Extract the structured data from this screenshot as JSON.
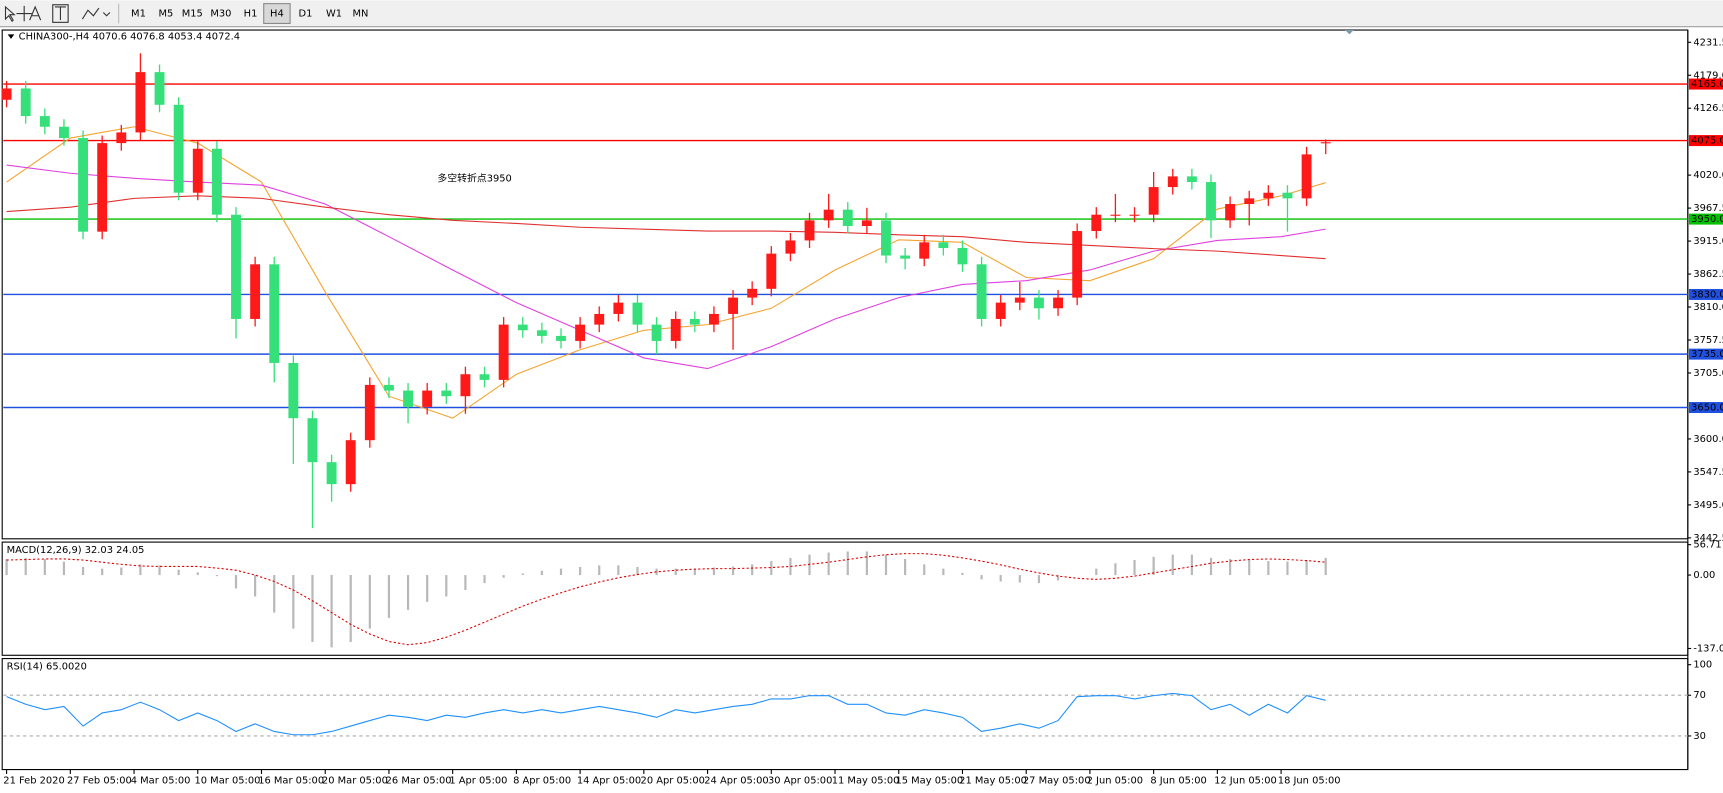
{
  "toolbar": {
    "timeframes": [
      "M1",
      "M5",
      "M15",
      "M30",
      "H1",
      "H4",
      "D1",
      "W1",
      "MN"
    ],
    "active": "H4"
  },
  "chart_data": [
    {
      "type": "candlestick",
      "title": "CHINA300-,H4 4070.6 4076.8 4053.4 4072.4",
      "annotation": "多空转折点3950",
      "x": [
        0,
        3,
        6,
        9,
        12,
        15,
        18,
        21,
        24,
        27,
        30,
        33,
        36,
        39,
        42,
        45,
        48,
        51,
        54,
        57,
        60,
        63,
        66,
        69,
        72,
        75,
        78,
        81,
        84,
        87,
        90,
        93,
        96,
        99,
        102,
        105,
        108,
        111,
        114,
        117,
        120,
        123,
        126,
        129,
        132,
        135,
        138,
        141,
        144,
        147,
        150,
        153,
        156,
        159,
        162,
        165,
        168,
        171,
        174,
        177,
        180,
        183,
        186,
        189,
        192,
        195,
        198,
        201,
        204,
        207
      ],
      "open": [
        4140,
        4158,
        4114,
        4097,
        4079,
        3930,
        4071,
        4088,
        4184,
        4132,
        3992,
        4062,
        3957,
        3791,
        3878,
        3721,
        3633,
        3563,
        3528,
        3598,
        3686,
        3677,
        3651,
        3677,
        3668,
        3703,
        3694,
        3782,
        3773,
        3764,
        3756,
        3782,
        3799,
        3817,
        3782,
        3756,
        3791,
        3782,
        3799,
        3825,
        3839,
        3895,
        3916,
        3948,
        3965,
        3939,
        3948,
        3892,
        3887,
        3913,
        3904,
        3878,
        3791,
        3817,
        3825,
        3808,
        3825,
        3931,
        3957,
        3957,
        3957,
        4001,
        4018,
        4009,
        3948,
        3974,
        3983,
        3992,
        3983,
        4070.6
      ],
      "high": [
        4170,
        4170,
        4126,
        4109,
        4091,
        4083,
        4100,
        4214,
        4196,
        4144,
        4074,
        4074,
        3969,
        3890,
        3890,
        3733,
        3645,
        3575,
        3610,
        3698,
        3698,
        3689,
        3689,
        3689,
        3715,
        3715,
        3794,
        3794,
        3785,
        3776,
        3794,
        3811,
        3829,
        3829,
        3794,
        3803,
        3803,
        3811,
        3837,
        3851,
        3907,
        3928,
        3960,
        3990,
        3977,
        3968,
        3960,
        3904,
        3925,
        3925,
        3916,
        3890,
        3829,
        3850,
        3837,
        3837,
        3943,
        3969,
        3990,
        3969,
        4025,
        4030,
        4030,
        4021,
        3986,
        3995,
        4004,
        4004,
        4065,
        4076.8
      ],
      "low": [
        4128,
        4102,
        4085,
        4067,
        3918,
        3918,
        4059,
        4076,
        4120,
        3980,
        3980,
        3945,
        3760,
        3779,
        3690,
        3560,
        3458,
        3500,
        3516,
        3586,
        3665,
        3625,
        3639,
        3656,
        3640,
        3682,
        3682,
        3761,
        3752,
        3744,
        3744,
        3770,
        3787,
        3770,
        3735,
        3744,
        3770,
        3770,
        3742,
        3813,
        3827,
        3883,
        3904,
        3936,
        3927,
        3927,
        3880,
        3870,
        3875,
        3892,
        3866,
        3779,
        3779,
        3805,
        3790,
        3796,
        3813,
        3919,
        3945,
        3945,
        3945,
        3989,
        3997,
        3920,
        3936,
        3940,
        3971,
        3930,
        3971,
        4053.4
      ],
      "close": [
        4158,
        4114,
        4097,
        4079,
        3930,
        4071,
        4088,
        4184,
        4132,
        3992,
        4062,
        3957,
        3791,
        3878,
        3721,
        3633,
        3563,
        3528,
        3598,
        3686,
        3677,
        3651,
        3677,
        3668,
        3703,
        3694,
        3782,
        3773,
        3764,
        3756,
        3782,
        3799,
        3817,
        3782,
        3756,
        3791,
        3782,
        3799,
        3825,
        3839,
        3895,
        3916,
        3948,
        3965,
        3939,
        3948,
        3892,
        3887,
        3913,
        3904,
        3878,
        3791,
        3817,
        3825,
        3808,
        3825,
        3931,
        3957,
        3957,
        3957,
        4001,
        4018,
        4009,
        3948,
        3974,
        3983,
        3992,
        3983,
        4053,
        4072.4
      ],
      "up_color": "#ff1a1a",
      "down_color": "#35e07a",
      "lines": [
        {
          "color": "#f5a430",
          "x": [
            0,
            10,
            20,
            30,
            40,
            50,
            60,
            70,
            80,
            90,
            100,
            110,
            120,
            130,
            140,
            150,
            160,
            170,
            180,
            190,
            200,
            207
          ],
          "values": [
            4009,
            4079,
            4097,
            4071,
            4009,
            3834,
            3668,
            3633,
            3703,
            3742,
            3773,
            3782,
            3808,
            3869,
            3917,
            3913,
            3857,
            3852,
            3887,
            3966,
            3987,
            4008
          ]
        },
        {
          "color": "#e040e0",
          "x": [
            0,
            10,
            20,
            30,
            40,
            50,
            60,
            70,
            80,
            90,
            100,
            110,
            120,
            130,
            140,
            150,
            160,
            170,
            180,
            190,
            200,
            207
          ],
          "values": [
            4036,
            4023,
            4015,
            4009,
            4004,
            3974,
            3922,
            3869,
            3817,
            3773,
            3729,
            3712,
            3747,
            3791,
            3825,
            3846,
            3852,
            3869,
            3899,
            3916,
            3922,
            3934
          ]
        },
        {
          "color": "#e03030",
          "x": [
            0,
            10,
            20,
            30,
            40,
            50,
            60,
            70,
            80,
            90,
            100,
            110,
            120,
            130,
            140,
            150,
            160,
            170,
            180,
            190,
            200,
            207
          ],
          "values": [
            3962,
            3969,
            3983,
            3987,
            3983,
            3969,
            3957,
            3948,
            3943,
            3937,
            3934,
            3931,
            3931,
            3929,
            3925,
            3922,
            3913,
            3908,
            3903,
            3899,
            3892,
            3887
          ]
        }
      ],
      "levels": [
        {
          "value": 4165,
          "label": "4165.0",
          "color": "#ff0000"
        },
        {
          "value": 4075,
          "label": "4075.0",
          "color": "#ff0000"
        },
        {
          "value": 3950,
          "label": "3950.0",
          "color": "#00c000"
        },
        {
          "value": 3830,
          "label": "3830.0",
          "color": "#2050e0"
        },
        {
          "value": 3735,
          "label": "3735.0",
          "color": "#2050e0"
        },
        {
          "value": 3650,
          "label": "3650.0",
          "color": "#2050e0"
        }
      ],
      "xlim": [
        0,
        264
      ],
      "xticks": [
        {
          "value": 0,
          "label": "21 Feb 2020"
        },
        {
          "value": 10,
          "label": "27 Feb 05:00"
        },
        {
          "value": 20,
          "label": "4 Mar 05:00"
        },
        {
          "value": 30,
          "label": "10 Mar 05:00"
        },
        {
          "value": 40,
          "label": "16 Mar 05:00"
        },
        {
          "value": 50,
          "label": "20 Mar 05:00"
        },
        {
          "value": 60,
          "label": "26 Mar 05:00"
        },
        {
          "value": 70,
          "label": "1 Apr 05:00"
        },
        {
          "value": 80,
          "label": "8 Apr 05:00"
        },
        {
          "value": 90,
          "label": "14 Apr 05:00"
        },
        {
          "value": 100,
          "label": "20 Apr 05:00"
        },
        {
          "value": 110,
          "label": "24 Apr 05:00"
        },
        {
          "value": 120,
          "label": "30 Apr 05:00"
        },
        {
          "value": 130,
          "label": "11 May 05:00"
        },
        {
          "value": 140,
          "label": "15 May 05:00"
        },
        {
          "value": 150,
          "label": "21 May 05:00"
        },
        {
          "value": 160,
          "label": "27 May 05:00"
        },
        {
          "value": 170,
          "label": "2 Jun 05:00"
        },
        {
          "value": 180,
          "label": "8 Jun 05:00"
        },
        {
          "value": 190,
          "label": "12 Jun 05:00"
        },
        {
          "value": 200,
          "label": "18 Jun 05:00"
        }
      ],
      "ylim": [
        3441,
        4251
      ],
      "yticks": [
        4231.5,
        {
          "value": 4179,
          "label": "4179.0"
        },
        4126.5,
        {
          "value": 4020,
          "label": "4020.0"
        },
        3967.5,
        {
          "value": 3915,
          "label": "3915.0"
        },
        3862.5,
        {
          "value": 3810,
          "label": "3810.0"
        },
        3757.5,
        {
          "value": 3705,
          "label": "3705.0"
        },
        {
          "value": 3600,
          "label": "3600.0"
        },
        3547.5,
        {
          "value": 3495,
          "label": "3495.0"
        },
        3442.5
      ]
    },
    {
      "type": "macd",
      "title": "MACD(12,26,9) 32.03 24.05",
      "x": [
        0,
        3,
        6,
        9,
        12,
        15,
        18,
        21,
        24,
        27,
        30,
        33,
        36,
        39,
        42,
        45,
        48,
        51,
        54,
        57,
        60,
        63,
        66,
        69,
        72,
        75,
        78,
        81,
        84,
        87,
        90,
        93,
        96,
        99,
        102,
        105,
        108,
        111,
        114,
        117,
        120,
        123,
        126,
        129,
        132,
        135,
        138,
        141,
        144,
        147,
        150,
        153,
        156,
        159,
        162,
        165,
        168,
        171,
        174,
        177,
        180,
        183,
        186,
        189,
        192,
        195,
        198,
        201,
        204,
        207
      ],
      "histogram": [
        30,
        32,
        30,
        25,
        15,
        12,
        14,
        20,
        18,
        10,
        5,
        -2,
        -25,
        -40,
        -70,
        -100,
        -125,
        -135,
        -125,
        -100,
        -80,
        -65,
        -50,
        -40,
        -28,
        -15,
        -5,
        3,
        8,
        12,
        15,
        18,
        18,
        15,
        12,
        12,
        12,
        14,
        16,
        20,
        26,
        32,
        38,
        42,
        44,
        44,
        38,
        30,
        20,
        12,
        4,
        -8,
        -12,
        -14,
        -15,
        -10,
        0,
        12,
        22,
        28,
        34,
        38,
        38,
        32,
        30,
        28,
        26,
        25,
        28,
        32.03
      ],
      "signal": [
        28,
        29,
        30,
        30,
        28,
        24,
        20,
        17,
        16,
        16,
        16,
        13,
        9,
        0,
        -12,
        -28,
        -48,
        -70,
        -92,
        -110,
        -124,
        -130,
        -126,
        -116,
        -103,
        -88,
        -73,
        -58,
        -45,
        -33,
        -22,
        -13,
        -5,
        1,
        6,
        9,
        11,
        12,
        12,
        13,
        14,
        16,
        20,
        24,
        29,
        34,
        38,
        40,
        40,
        37,
        32,
        26,
        19,
        11,
        4,
        -2,
        -6,
        -8,
        -6,
        -2,
        4,
        10,
        16,
        22,
        26,
        29,
        30,
        29,
        27,
        24.05
      ],
      "hist_color": "#b8b8b8",
      "signal_color": "#e00000",
      "xlim": [
        0,
        264
      ],
      "ylim": [
        -149.7,
        61.5
      ],
      "yticks": [
        56.71,
        {
          "value": 0,
          "label": "0.00"
        },
        -137.01
      ]
    },
    {
      "type": "line",
      "title": "RSI(14) 65.0020",
      "x": [
        0,
        3,
        6,
        9,
        12,
        15,
        18,
        21,
        24,
        27,
        30,
        33,
        36,
        39,
        42,
        45,
        48,
        51,
        54,
        57,
        60,
        63,
        66,
        69,
        72,
        75,
        78,
        81,
        84,
        87,
        90,
        93,
        96,
        99,
        102,
        105,
        108,
        111,
        114,
        117,
        120,
        123,
        126,
        129,
        132,
        135,
        138,
        141,
        144,
        147,
        150,
        153,
        156,
        159,
        162,
        165,
        168,
        171,
        174,
        177,
        180,
        183,
        186,
        189,
        192,
        195,
        198,
        201,
        204,
        207
      ],
      "values": [
        68.6,
        61.1,
        55.8,
        59.0,
        39.7,
        52.6,
        55.8,
        63.2,
        55.8,
        45.1,
        52.6,
        45.1,
        34.4,
        41.9,
        34.4,
        31.2,
        31.2,
        34.4,
        39.7,
        45.1,
        50.4,
        48.3,
        45.1,
        50.4,
        48.3,
        52.6,
        55.8,
        52.6,
        55.8,
        52.6,
        55.8,
        59.0,
        55.8,
        52.6,
        48.3,
        55.8,
        52.6,
        55.8,
        59.0,
        61.1,
        66.4,
        66.4,
        69.6,
        69.6,
        61.1,
        61.1,
        52.6,
        50.4,
        55.8,
        52.6,
        48.3,
        34.4,
        37.6,
        41.9,
        37.6,
        45.1,
        68.6,
        69.6,
        69.6,
        66.4,
        69.6,
        71.8,
        69.6,
        55.8,
        61.1,
        50.4,
        61.1,
        52.6,
        69.6,
        65.002
      ],
      "color": "#1e90ff",
      "xlim": [
        0,
        264
      ],
      "ylim": [
        -3,
        106
      ],
      "yticks": [
        100,
        70,
        30
      ],
      "levels": [
        70,
        30
      ]
    }
  ]
}
